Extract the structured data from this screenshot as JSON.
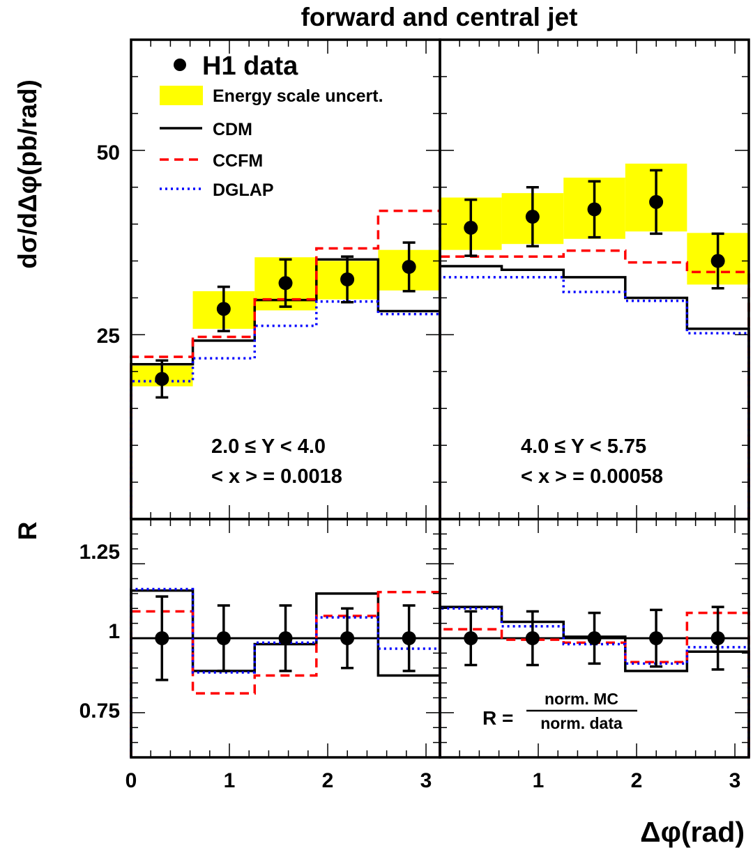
{
  "title": "forward and central jet",
  "ylabel_top": "dσ/dΔφ(pb/rad)",
  "ylabel_bottom": "R",
  "xlabel": "Δφ(rad)",
  "legend": {
    "data": "H1 data",
    "band": "Energy scale uncert.",
    "cdm": "CDM",
    "ccfm": "CCFM",
    "dglap": "DGLAP"
  },
  "panel_labels": {
    "left_line1": "2.0 ≤ Y < 4.0",
    "left_line2": "< x > = 0.0018",
    "right_line1": "4.0 ≤ Y < 5.75",
    "right_line2": "< x > = 0.00058"
  },
  "ratio_formula": {
    "lhs": "R =",
    "numerator": "norm. MC",
    "denominator": "norm. data"
  },
  "colors": {
    "band": "#ffff00",
    "cdm": "#000000",
    "ccfm": "#ff0000",
    "dglap": "#0000ff",
    "data": "#000000"
  },
  "chart_data": [
    {
      "type": "line",
      "panel": "top-left",
      "title": "2.0 ≤ Y < 4.0",
      "xlim": [
        0,
        3.1416
      ],
      "ylim": [
        0,
        65
      ],
      "ytick_labels": [
        "25",
        "50"
      ],
      "bin_edges": [
        0,
        0.628,
        1.257,
        1.885,
        2.513,
        3.1416
      ],
      "x": [
        0.314,
        0.942,
        1.571,
        2.199,
        2.827
      ],
      "data": {
        "values": [
          19.0,
          28.5,
          32.0,
          32.5,
          34.2
        ],
        "errors": [
          2.5,
          3.0,
          3.2,
          3.1,
          3.3
        ]
      },
      "band": {
        "low": [
          18.0,
          25.8,
          28.3,
          29.8,
          31.0
        ],
        "high": [
          20.8,
          30.9,
          35.5,
          35.0,
          36.5
        ]
      },
      "series": [
        {
          "name": "CDM",
          "values": [
            21.0,
            24.2,
            29.7,
            35.2,
            28.2
          ]
        },
        {
          "name": "CCFM",
          "values": [
            22.0,
            24.7,
            29.8,
            36.7,
            41.8
          ]
        },
        {
          "name": "DGLAP",
          "values": [
            18.7,
            21.8,
            26.2,
            29.5,
            27.8
          ]
        }
      ]
    },
    {
      "type": "line",
      "panel": "top-right",
      "title": "4.0 ≤ Y < 5.75",
      "xlim": [
        0,
        3.1416
      ],
      "ylim": [
        0,
        65
      ],
      "bin_edges": [
        0,
        0.628,
        1.257,
        1.885,
        2.513,
        3.1416
      ],
      "x": [
        0.314,
        0.942,
        1.571,
        2.199,
        2.827
      ],
      "data": {
        "values": [
          39.5,
          41.0,
          42.0,
          43.0,
          35.0
        ],
        "errors": [
          3.8,
          4.0,
          3.8,
          4.3,
          3.7
        ]
      },
      "band": {
        "low": [
          36.5,
          37.3,
          38.0,
          39.0,
          31.8
        ],
        "high": [
          43.6,
          44.2,
          46.3,
          48.2,
          38.8
        ]
      },
      "series": [
        {
          "name": "CDM",
          "values": [
            34.3,
            33.8,
            32.8,
            30.0,
            25.8
          ]
        },
        {
          "name": "CCFM",
          "values": [
            35.6,
            35.6,
            36.4,
            34.8,
            33.5
          ]
        },
        {
          "name": "DGLAP",
          "values": [
            32.8,
            32.8,
            30.8,
            29.6,
            25.2
          ]
        }
      ]
    },
    {
      "type": "line",
      "panel": "bottom-left",
      "xlim": [
        0,
        3.1416
      ],
      "ylim": [
        0.6,
        1.4
      ],
      "ytick_labels": [
        "0.75",
        "1",
        "1.25"
      ],
      "xtick_labels": [
        "0",
        "1",
        "2",
        "3"
      ],
      "bin_edges": [
        0,
        0.628,
        1.257,
        1.885,
        2.513,
        3.1416
      ],
      "x": [
        0.314,
        0.942,
        1.571,
        2.199,
        2.827
      ],
      "data": {
        "values": [
          1,
          1,
          1,
          1,
          1
        ],
        "errors": [
          0.14,
          0.11,
          0.11,
          0.1,
          0.11
        ]
      },
      "series": [
        {
          "name": "CDM",
          "values": [
            1.16,
            0.89,
            0.98,
            1.15,
            0.875
          ]
        },
        {
          "name": "CCFM",
          "values": [
            1.09,
            0.815,
            0.875,
            1.075,
            1.155
          ]
        },
        {
          "name": "DGLAP",
          "values": [
            1.165,
            0.885,
            0.985,
            1.07,
            0.965
          ]
        }
      ]
    },
    {
      "type": "line",
      "panel": "bottom-right",
      "xlim": [
        0,
        3.1416
      ],
      "ylim": [
        0.6,
        1.4
      ],
      "xtick_labels": [
        "1",
        "2",
        "3"
      ],
      "bin_edges": [
        0,
        0.628,
        1.257,
        1.885,
        2.513,
        3.1416
      ],
      "x": [
        0.314,
        0.942,
        1.571,
        2.199,
        2.827
      ],
      "data": {
        "values": [
          1,
          1,
          1,
          1,
          1
        ],
        "errors": [
          0.09,
          0.09,
          0.085,
          0.095,
          0.105
        ]
      },
      "series": [
        {
          "name": "CDM",
          "values": [
            1.105,
            1.055,
            1.005,
            0.89,
            0.955
          ]
        },
        {
          "name": "CCFM",
          "values": [
            1.03,
            0.995,
            0.985,
            0.92,
            1.085
          ]
        },
        {
          "name": "DGLAP",
          "values": [
            1.1,
            1.04,
            0.98,
            0.915,
            0.97
          ]
        }
      ]
    }
  ]
}
